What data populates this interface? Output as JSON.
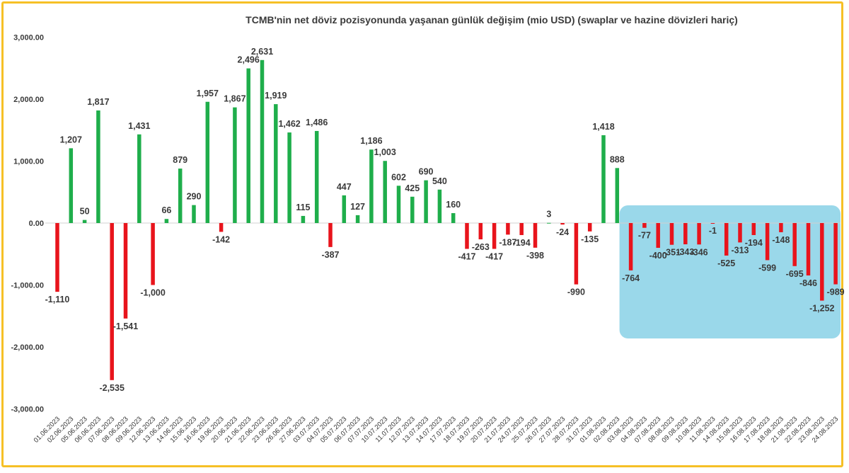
{
  "chart_data": {
    "type": "bar",
    "title": "TCMB'nin net döviz pozisyonunda yaşanan günlük değişim (mio USD) (swaplar ve hazine dövizleri hariç)",
    "xlabel": "",
    "ylabel": "",
    "ylim": [
      -3000,
      3000
    ],
    "yticks": [
      3000,
      2000,
      1000,
      0,
      -1000,
      -2000,
      -3000
    ],
    "ytick_labels": [
      "3,000.00",
      "2,000.00",
      "1,000.00",
      "0.00",
      "-1,000.00",
      "-2,000.00",
      "-3,000.00"
    ],
    "grid": false,
    "colors": {
      "positive": "#1FAE4B",
      "negative": "#E8141C",
      "highlight_box": "#9AD8EA",
      "border": "#F6C026"
    },
    "highlight_from": "03.08.2023",
    "highlight_to": "24.08.2023",
    "categories": [
      "01.06.2023",
      "02.06.2023",
      "05.06.2023",
      "06.06.2023",
      "07.06.2023",
      "08.06.2023",
      "09.06.2023",
      "12.06.2023",
      "13.06.2023",
      "14.06.2023",
      "15.06.2023",
      "16.06.2023",
      "19.06.2023",
      "20.06.2023",
      "21.06.2023",
      "22.06.2023",
      "23.06.2023",
      "26.06.2023",
      "27.06.2023",
      "03.07.2023",
      "04.07.2023",
      "05.07.2023",
      "06.07.2023",
      "07.07.2023",
      "10.07.2023",
      "11.07.2023",
      "12.07.2023",
      "13.07.2023",
      "14.07.2023",
      "17.07.2023",
      "18.07.2023",
      "19.07.2023",
      "20.07.2023",
      "21.07.2023",
      "24.07.2023",
      "25.07.2023",
      "26.07.2023",
      "27.07.2023",
      "28.07.2023",
      "31.07.2023",
      "01.08.2023",
      "02.08.2023",
      "03.08.2023",
      "04.08.2023",
      "07.08.2023",
      "08.08.2023",
      "09.08.2023",
      "10.08.2023",
      "11.08.2023",
      "14.08.2023",
      "15.08.2023",
      "16.08.2023",
      "17.08.2023",
      "18.08.2023",
      "21.08.2023",
      "22.08.2023",
      "23.08.2023",
      "24.08.2023"
    ],
    "values": [
      -1110,
      1207,
      50,
      1817,
      -2535,
      -1541,
      1431,
      -1000,
      66,
      879,
      290,
      1957,
      -142,
      1867,
      2496,
      2631,
      1919,
      1462,
      115,
      1486,
      -387,
      447,
      127,
      1186,
      1003,
      602,
      425,
      690,
      540,
      160,
      -417,
      -263,
      -417,
      -187,
      -194,
      -398,
      3,
      -24,
      -990,
      -135,
      1418,
      888,
      -764,
      -77,
      -400,
      -351,
      -343,
      -346,
      -1,
      -525,
      -313,
      -194,
      -599,
      -148,
      -695,
      -846,
      -1252,
      -989
    ],
    "data_labels": [
      "-1,110",
      "1,207",
      "50",
      "1,817",
      "-2,535",
      "-1,541",
      "1,431",
      "-1,000",
      "66",
      "879",
      "290",
      "1,957",
      "-142",
      "1,867",
      "2,496",
      "2,631",
      "1,919",
      "1,462",
      "115",
      "1,486",
      "-387",
      "447",
      "127",
      "1,186",
      "1,003",
      "602",
      "425",
      "690",
      "540",
      "160",
      "-417",
      "-263",
      "-417",
      "-187",
      "-194",
      "-398",
      "3",
      "-24",
      "-990",
      "-135",
      "1,418",
      "888",
      "-764",
      "-77",
      "-400",
      "-351",
      "-343",
      "-346",
      "-1",
      "-525",
      "-313",
      "-194",
      "-599",
      "-148",
      "-695",
      "-846",
      "-1,252",
      "-989"
    ]
  }
}
